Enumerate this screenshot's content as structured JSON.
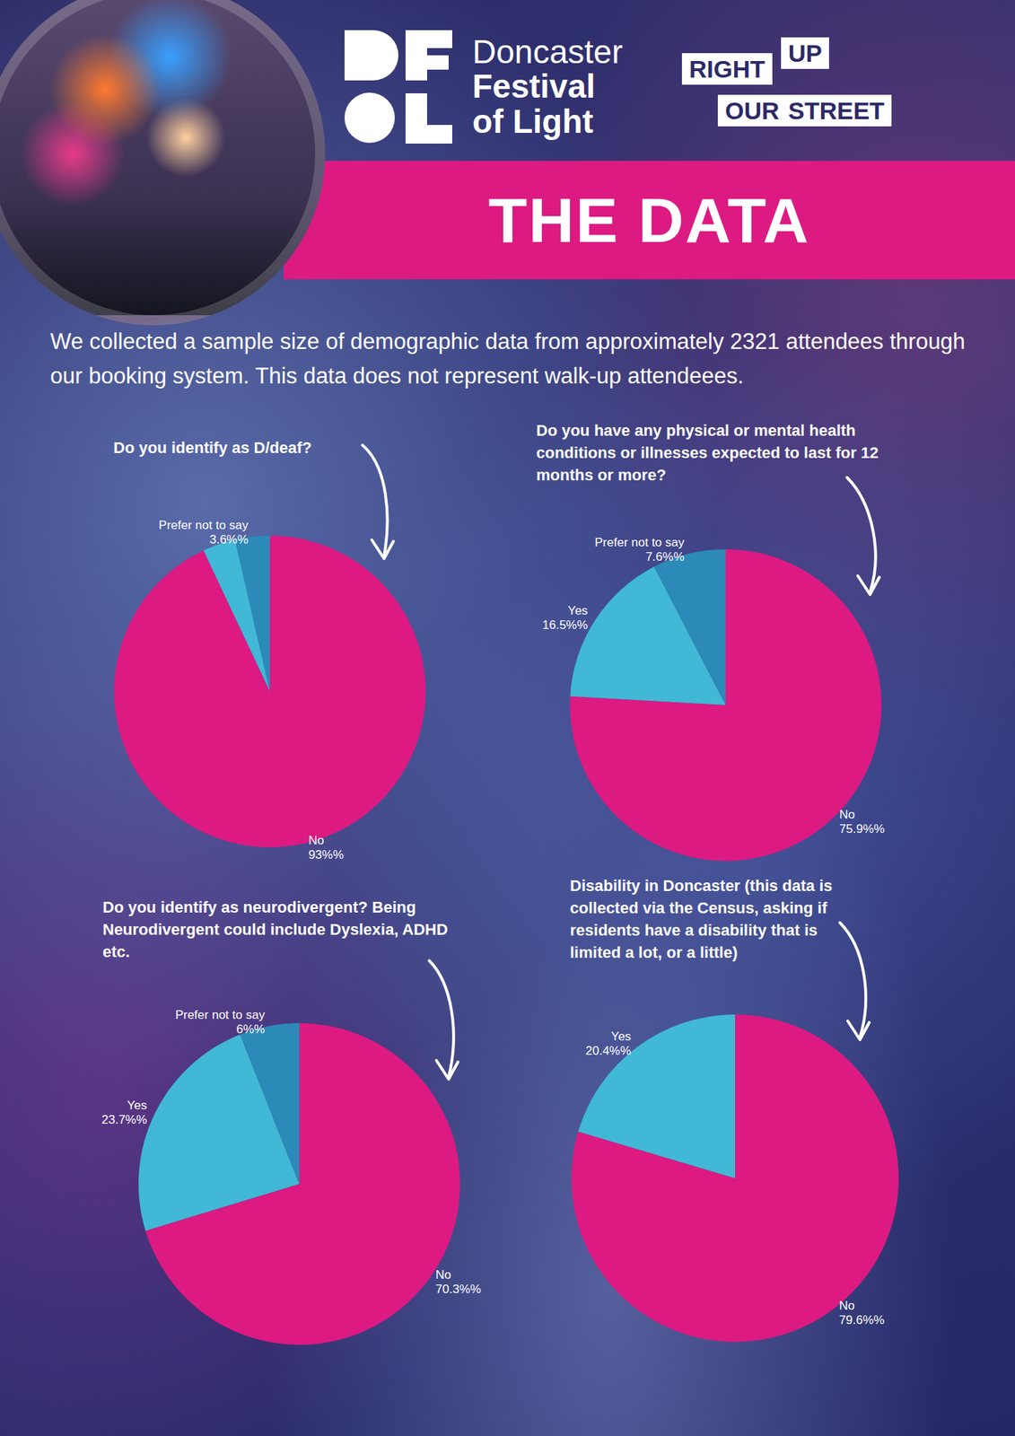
{
  "header": {
    "logo_text": [
      "Doncaster",
      "Festival",
      "of Light"
    ],
    "partner_logo": [
      "RIGHT",
      "UP",
      "OUR",
      "STREET"
    ],
    "heading": "THE DATA"
  },
  "intro": "We collected a sample size of demographic data from approximately 2321 attendees through our booking system. This data does not represent walk-up attendeees.",
  "chart_data": [
    {
      "type": "pie",
      "title": "Do you identify as D/deaf?",
      "categories": [
        "No",
        null,
        "Prefer not to say"
      ],
      "values": [
        93,
        3.4,
        3.6
      ],
      "value_labels": [
        "93%%",
        null,
        "3.6%%"
      ],
      "colors": [
        "#dc1a82",
        "#40b8d6",
        "#2b8ab8"
      ],
      "data_labels": true
    },
    {
      "type": "pie",
      "title": "Do you have any physical or mental health conditions or illnesses expected to last for 12 months or more?",
      "categories": [
        "No",
        "Yes",
        "Prefer not to say"
      ],
      "values": [
        75.9,
        16.5,
        7.6
      ],
      "value_labels": [
        "75.9%%",
        "16.5%%",
        "7.6%%"
      ],
      "colors": [
        "#dc1a82",
        "#40b8d6",
        "#2b8ab8"
      ],
      "data_labels": true
    },
    {
      "type": "pie",
      "title": "Do you identify as neurodivergent? Being Neurodivergent could include Dyslexia, ADHD etc.",
      "categories": [
        "No",
        "Yes",
        "Prefer not to say"
      ],
      "values": [
        70.3,
        23.7,
        6
      ],
      "value_labels": [
        "70.3%%",
        "23.7%%",
        "6%%"
      ],
      "colors": [
        "#dc1a82",
        "#40b8d6",
        "#2b8ab8"
      ],
      "data_labels": true
    },
    {
      "type": "pie",
      "title": "Disability in Doncaster (this data is collected via the Census, asking if residents have a disability that is limited a lot, or a little)",
      "categories": [
        "No",
        "Yes"
      ],
      "values": [
        79.6,
        20.4
      ],
      "value_labels": [
        "79.6%%",
        "20.4%%"
      ],
      "colors": [
        "#dc1a82",
        "#40b8d6"
      ],
      "data_labels": true
    }
  ]
}
